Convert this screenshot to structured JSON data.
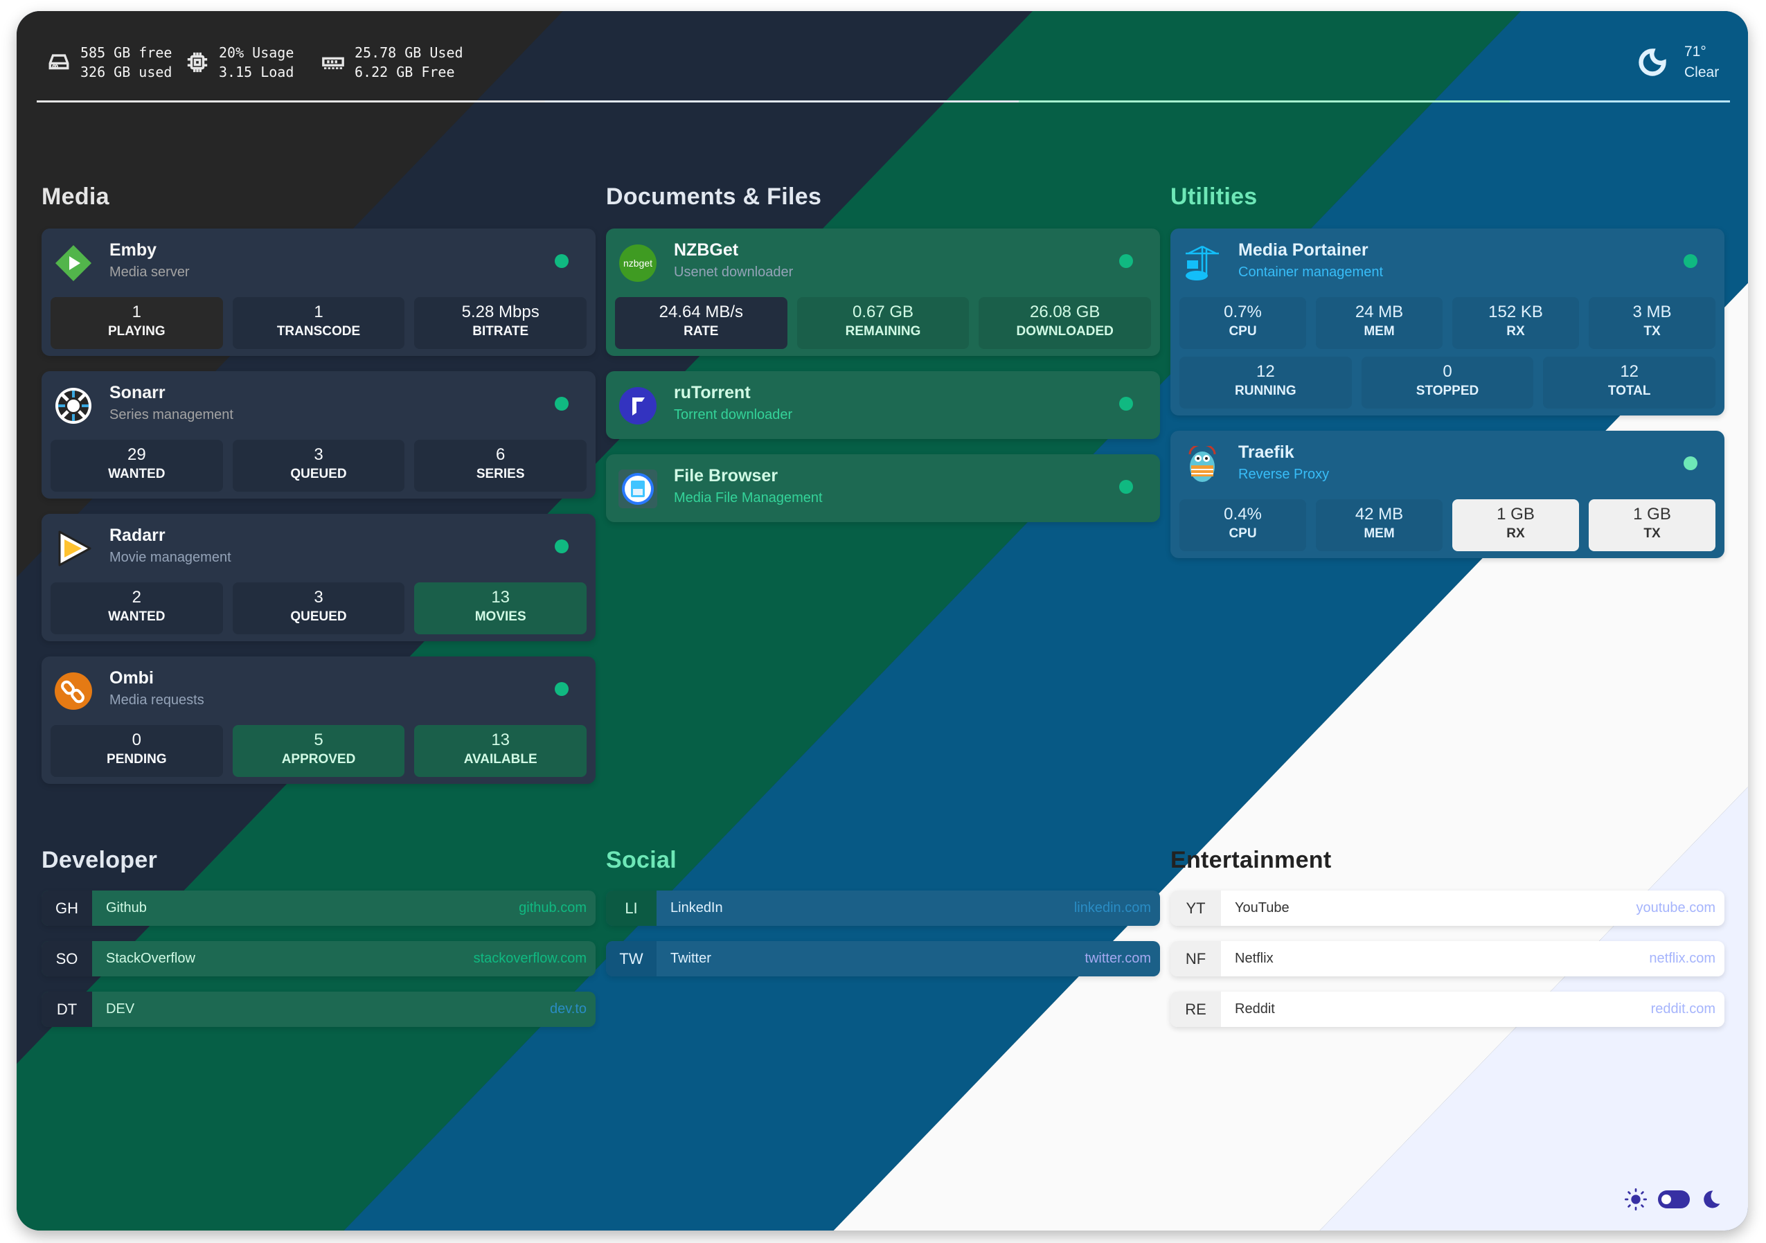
{
  "header": {
    "disk": {
      "icon": "hard-drive-icon",
      "line1": "585 GB free",
      "line2": "326 GB used"
    },
    "cpu": {
      "icon": "cpu-icon",
      "line1": "20% Usage",
      "line2": "3.15 Load"
    },
    "ram": {
      "icon": "memory-icon",
      "line1": "25.78 GB Used",
      "line2": "6.22 GB Free"
    },
    "weather": {
      "icon": "moon-icon",
      "temp": "71°",
      "condition": "Clear"
    }
  },
  "sections": {
    "media": {
      "title": "Media",
      "services": [
        {
          "name": "Emby",
          "subtitle": "Media server",
          "icon": "emby-icon",
          "status": "online",
          "stats": [
            {
              "value": "1",
              "label": "PLAYING"
            },
            {
              "value": "1",
              "label": "TRANSCODE"
            },
            {
              "value": "5.28 Mbps",
              "label": "BITRATE"
            }
          ]
        },
        {
          "name": "Sonarr",
          "subtitle": "Series management",
          "icon": "sonarr-icon",
          "status": "online",
          "stats": [
            {
              "value": "29",
              "label": "WANTED"
            },
            {
              "value": "3",
              "label": "QUEUED"
            },
            {
              "value": "6",
              "label": "SERIES"
            }
          ]
        },
        {
          "name": "Radarr",
          "subtitle": "Movie management",
          "icon": "radarr-icon",
          "status": "online",
          "stats": [
            {
              "value": "2",
              "label": "WANTED"
            },
            {
              "value": "3",
              "label": "QUEUED"
            },
            {
              "value": "13",
              "label": "MOVIES"
            }
          ]
        },
        {
          "name": "Ombi",
          "subtitle": "Media requests",
          "icon": "ombi-icon",
          "status": "online",
          "stats": [
            {
              "value": "0",
              "label": "PENDING"
            },
            {
              "value": "5",
              "label": "APPROVED"
            },
            {
              "value": "13",
              "label": "AVAILABLE"
            }
          ]
        }
      ]
    },
    "documents": {
      "title": "Documents & Files",
      "services": [
        {
          "name": "NZBGet",
          "subtitle": "Usenet downloader",
          "icon": "nzbget-icon",
          "logo_text": "nzbget",
          "status": "online",
          "stats": [
            {
              "value": "24.64 MB/s",
              "label": "RATE"
            },
            {
              "value": "0.67 GB",
              "label": "REMAINING"
            },
            {
              "value": "26.08 GB",
              "label": "DOWNLOADED"
            }
          ]
        },
        {
          "name": "ruTorrent",
          "subtitle": "Torrent downloader",
          "icon": "rutorrent-icon",
          "status": "online"
        },
        {
          "name": "File Browser",
          "subtitle": "Media File Management",
          "icon": "file-browser-icon",
          "status": "online"
        }
      ]
    },
    "utilities": {
      "title": "Utilities",
      "services": [
        {
          "name": "Media Portainer",
          "subtitle": "Container management",
          "icon": "portainer-icon",
          "status": "online",
          "stats": [
            {
              "value": "0.7%",
              "label": "CPU"
            },
            {
              "value": "24 MB",
              "label": "MEM"
            },
            {
              "value": "152 KB",
              "label": "RX"
            },
            {
              "value": "3 MB",
              "label": "TX"
            }
          ],
          "stats2": [
            {
              "value": "12",
              "label": "RUNNING"
            },
            {
              "value": "0",
              "label": "STOPPED"
            },
            {
              "value": "12",
              "label": "TOTAL"
            }
          ]
        },
        {
          "name": "Traefik",
          "subtitle": "Reverse Proxy",
          "icon": "traefik-icon",
          "status": "online",
          "stats": [
            {
              "value": "0.4%",
              "label": "CPU"
            },
            {
              "value": "42 MB",
              "label": "MEM"
            },
            {
              "value": "1 GB",
              "label": "RX"
            },
            {
              "value": "1 GB",
              "label": "TX"
            }
          ]
        }
      ]
    },
    "developer": {
      "title": "Developer",
      "bookmarks": [
        {
          "abbr": "GH",
          "name": "Github",
          "url": "github.com"
        },
        {
          "abbr": "SO",
          "name": "StackOverflow",
          "url": "stackoverflow.com"
        },
        {
          "abbr": "DT",
          "name": "DEV",
          "url": "dev.to"
        }
      ]
    },
    "social": {
      "title": "Social",
      "bookmarks": [
        {
          "abbr": "LI",
          "name": "LinkedIn",
          "url": "linkedin.com"
        },
        {
          "abbr": "TW",
          "name": "Twitter",
          "url": "twitter.com"
        }
      ]
    },
    "entertainment": {
      "title": "Entertainment",
      "bookmarks": [
        {
          "abbr": "YT",
          "name": "YouTube",
          "url": "youtube.com"
        },
        {
          "abbr": "NF",
          "name": "Netflix",
          "url": "netflix.com"
        },
        {
          "abbr": "RE",
          "name": "Reddit",
          "url": "reddit.com"
        }
      ]
    }
  },
  "theme_toggle": {
    "light_icon": "sun-icon",
    "dark_icon": "moon-icon",
    "state": "light"
  },
  "colors": {
    "status_online": "#10b981",
    "toggle": "#3730a3"
  },
  "themes": [
    "#262626",
    "#1e293b",
    "#065f46",
    "#075985",
    "#fafafa",
    "#eef2ff"
  ]
}
